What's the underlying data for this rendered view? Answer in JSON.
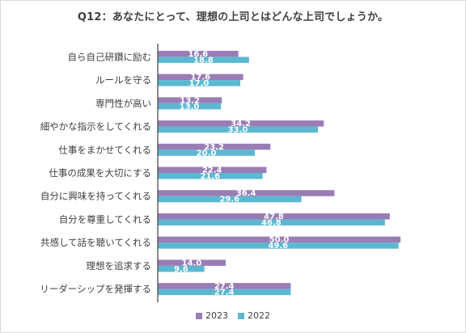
{
  "chart_data": {
    "type": "bar",
    "orientation": "horizontal",
    "title": "Q12：あなたにとって、理想の上司とはどんな上司でしょうか。",
    "categories": [
      "自ら自己研鑽に励む",
      "ルールを守る",
      "専門性が高い",
      "細やかな指示をしてくれる",
      "仕事をまかせてくれる",
      "仕事の成果を大切にする",
      "自分に興味を持ってくれる",
      "自分を尊重してくれる",
      "共感して話を聴いてくれる",
      "理想を追求する",
      "リーダーシップを発揮する"
    ],
    "series": [
      {
        "name": "2023",
        "color": "#9a7db5",
        "values": [
          16.6,
          17.6,
          13.2,
          34.2,
          23.2,
          22.4,
          36.4,
          47.8,
          50.0,
          14.0,
          27.4
        ],
        "labels": [
          "16.6",
          "17.6",
          "13.2",
          "34.2",
          "23.2",
          "22.4",
          "36.4",
          "47.8",
          "50.0",
          "14.0",
          "27.4"
        ]
      },
      {
        "name": "2022",
        "color": "#5bb8d0",
        "values": [
          18.8,
          17.0,
          13.0,
          33.0,
          20.0,
          21.6,
          29.6,
          46.8,
          49.6,
          9.6,
          27.4
        ],
        "labels": [
          "18.8",
          "17.0",
          "13.0",
          "33.0",
          "20.0",
          "21.6",
          "29.6",
          "46.8",
          "49.6",
          "9.6",
          "27.4"
        ]
      }
    ],
    "xlim": [
      0,
      50
    ],
    "grid": false,
    "legend_position": "bottom"
  }
}
